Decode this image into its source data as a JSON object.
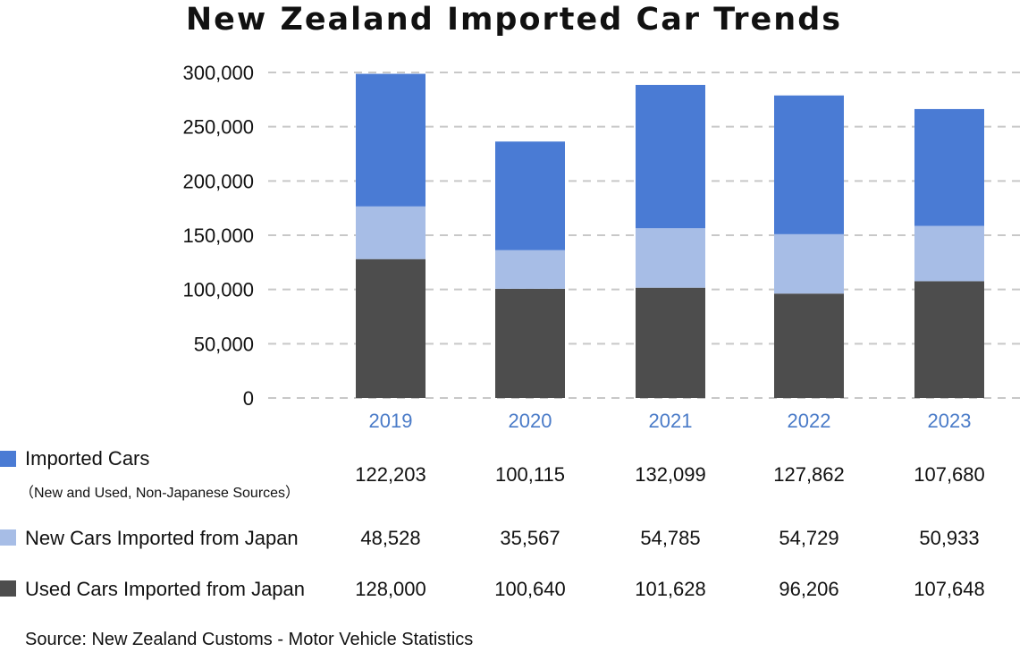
{
  "title": "New Zealand Imported Car Trends",
  "colors": {
    "imported": "#4a7bd4",
    "new_japan": "#a7bde6",
    "used_japan": "#4d4d4d",
    "grid": "#c8c8c8",
    "year": "#4a7bc8"
  },
  "chart_data": {
    "type": "bar",
    "stacked": true,
    "categories": [
      "2019",
      "2020",
      "2021",
      "2022",
      "2023"
    ],
    "ylim": [
      0,
      300000
    ],
    "yticks": [
      "0",
      "50,000",
      "100,000",
      "150,000",
      "200,000",
      "250,000",
      "300,000"
    ],
    "grid": true,
    "series": [
      {
        "name": "Used Cars Imported from Japan",
        "values": [
          128000,
          100640,
          101628,
          96206,
          107648
        ],
        "display": [
          "128,000",
          "100,640",
          "101,628",
          "96,206",
          "107,648"
        ]
      },
      {
        "name": "New Cars Imported from Japan",
        "values": [
          48528,
          35567,
          54785,
          54729,
          50933
        ],
        "display": [
          "48,528",
          "35,567",
          "54,785",
          "54,729",
          "50,933"
        ]
      },
      {
        "name": "Imported Cars",
        "subtitle": "（New and Used, Non-Japanese Sources）",
        "values": [
          122203,
          100115,
          132099,
          127862,
          107680
        ],
        "display": [
          "122,203",
          "100,115",
          "132,099",
          "127,862",
          "107,680"
        ]
      }
    ]
  },
  "source": "Source: New Zealand Customs - Motor Vehicle Statistics"
}
